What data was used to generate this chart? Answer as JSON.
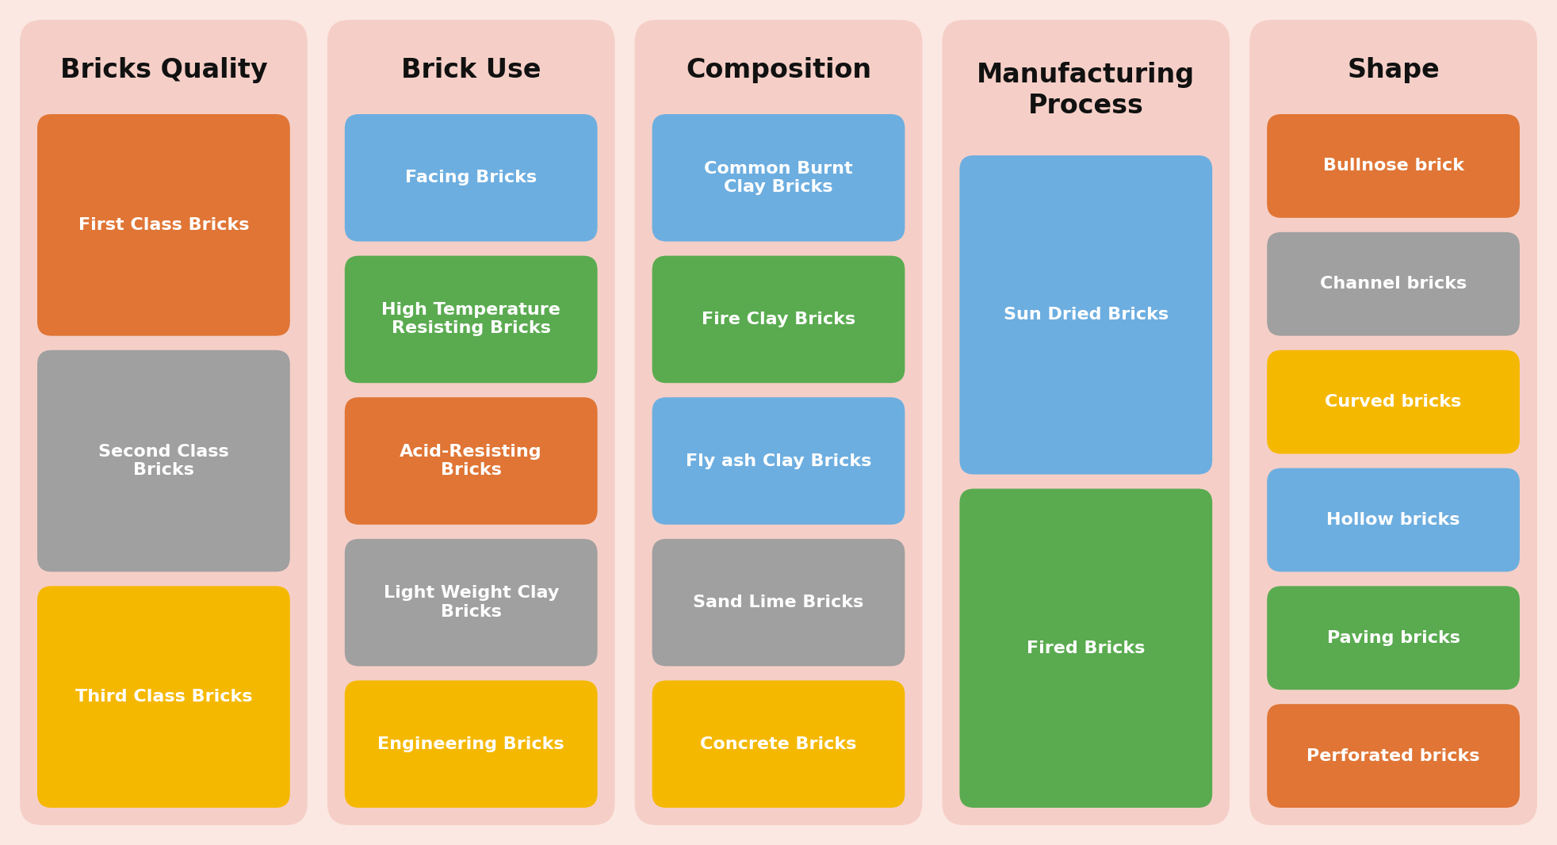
{
  "background": "#fce8e2",
  "panel_bg": "#f5cfc7",
  "columns": [
    {
      "title": "Bricks Quality",
      "title_lines": 1,
      "items": [
        {
          "text": "First Class Bricks",
          "color": "#e07535",
          "text_color": "#ffffff"
        },
        {
          "text": "Second Class\nBricks",
          "color": "#a0a0a0",
          "text_color": "#ffffff"
        },
        {
          "text": "Third Class Bricks",
          "color": "#f5b800",
          "text_color": "#ffffff"
        }
      ]
    },
    {
      "title": "Brick Use",
      "title_lines": 1,
      "items": [
        {
          "text": "Facing Bricks",
          "color": "#6daee0",
          "text_color": "#ffffff"
        },
        {
          "text": "High Temperature\nResisting Bricks",
          "color": "#5aab50",
          "text_color": "#ffffff"
        },
        {
          "text": "Acid-Resisting\nBricks",
          "color": "#e07535",
          "text_color": "#ffffff"
        },
        {
          "text": "Light Weight Clay\nBricks",
          "color": "#a0a0a0",
          "text_color": "#ffffff"
        },
        {
          "text": "Engineering Bricks",
          "color": "#f5b800",
          "text_color": "#ffffff"
        }
      ]
    },
    {
      "title": "Composition",
      "title_lines": 1,
      "items": [
        {
          "text": "Common Burnt\nClay Bricks",
          "color": "#6daee0",
          "text_color": "#ffffff"
        },
        {
          "text": "Fire Clay Bricks",
          "color": "#5aab50",
          "text_color": "#ffffff"
        },
        {
          "text": "Fly ash Clay Bricks",
          "color": "#6daee0",
          "text_color": "#ffffff"
        },
        {
          "text": "Sand Lime Bricks",
          "color": "#a0a0a0",
          "text_color": "#ffffff"
        },
        {
          "text": "Concrete Bricks",
          "color": "#f5b800",
          "text_color": "#ffffff"
        }
      ]
    },
    {
      "title": "Manufacturing\nProcess",
      "title_lines": 2,
      "items": [
        {
          "text": "Sun Dried Bricks",
          "color": "#6daee0",
          "text_color": "#ffffff"
        },
        {
          "text": "Fired Bricks",
          "color": "#5aab50",
          "text_color": "#ffffff"
        }
      ]
    },
    {
      "title": "Shape",
      "title_lines": 1,
      "items": [
        {
          "text": "Bullnose brick",
          "color": "#e07535",
          "text_color": "#ffffff"
        },
        {
          "text": "Channel bricks",
          "color": "#a0a0a0",
          "text_color": "#ffffff"
        },
        {
          "text": "Curved bricks",
          "color": "#f5b800",
          "text_color": "#ffffff"
        },
        {
          "text": "Hollow bricks",
          "color": "#6daee0",
          "text_color": "#ffffff"
        },
        {
          "text": "Paving bricks",
          "color": "#5aab50",
          "text_color": "#ffffff"
        },
        {
          "text": "Perforated bricks",
          "color": "#e07535",
          "text_color": "#ffffff"
        }
      ]
    }
  ],
  "title_fontsize": 24,
  "item_fontsize": 16
}
